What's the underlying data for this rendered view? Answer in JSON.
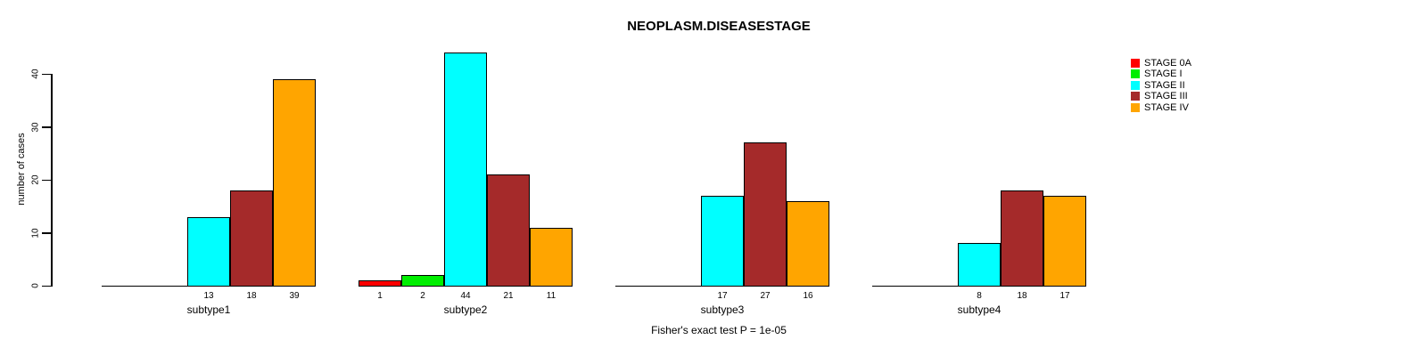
{
  "title": "NEOPLASM.DISEASESTAGE",
  "footer": "Fisher's exact test P = 1e-05",
  "axis": {
    "y_label": "number of cases",
    "y_ticks": [
      "0",
      "10",
      "20",
      "30",
      "40"
    ]
  },
  "chart_data": {
    "type": "bar",
    "title": "NEOPLASM.DISEASESTAGE",
    "xlabel": "",
    "ylabel": "number of cases",
    "ylim": [
      0,
      44
    ],
    "yticks": [
      0,
      10,
      20,
      30,
      40
    ],
    "grid": false,
    "legend_position": "right-outside",
    "annotation": "Fisher's exact test P = 1e-05",
    "categories": [
      "subtype1",
      "subtype2",
      "subtype3",
      "subtype4"
    ],
    "series": [
      {
        "name": "STAGE 0A",
        "color": "#FF0000",
        "values": [
          0,
          1,
          0,
          0
        ]
      },
      {
        "name": "STAGE I",
        "color": "#00EE00",
        "values": [
          0,
          2,
          0,
          0
        ]
      },
      {
        "name": "STAGE II",
        "color": "#00FFFF",
        "values": [
          13,
          44,
          17,
          8
        ]
      },
      {
        "name": "STAGE III",
        "color": "#A52A2A",
        "values": [
          18,
          21,
          27,
          18
        ]
      },
      {
        "name": "STAGE IV",
        "color": "#FFA500",
        "values": [
          39,
          11,
          16,
          17
        ]
      }
    ],
    "value_labels_shown_only_when_nonzero": true
  }
}
